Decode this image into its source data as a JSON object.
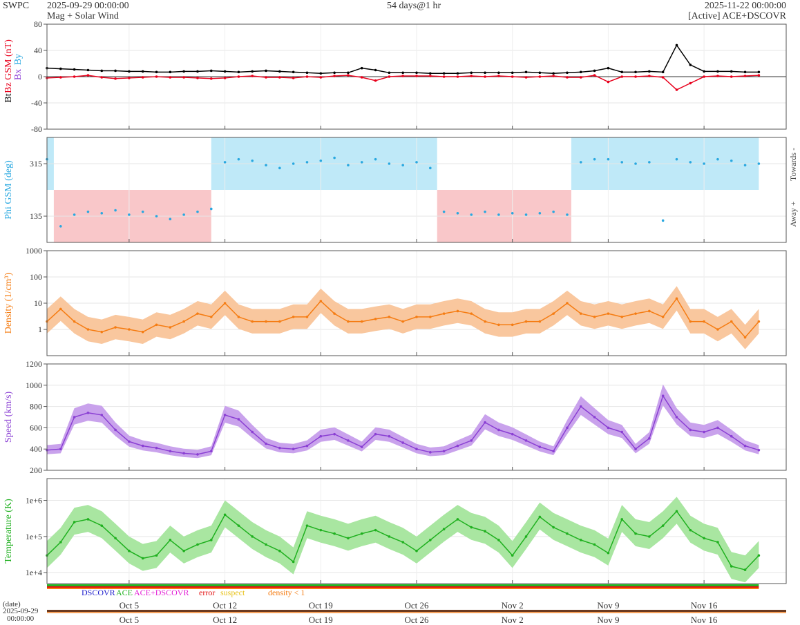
{
  "header": {
    "org": "SWPC",
    "start_time": "2025-09-29 00:00:00",
    "product": "Mag + Solar Wind",
    "span": "54 days@1 hr",
    "end_time": "2025-11-22 00:00:00",
    "source": "[Active] ACE+DSCOVR"
  },
  "colors": {
    "bt": "#000000",
    "bz": "#e8001c",
    "bx": "#8d3fd6",
    "by": "#29a8e0",
    "phi": "#29a8e0",
    "towards_fill": "#bfe9f8",
    "away_fill": "#f9c7c9",
    "density": "#f57c12",
    "density_fill": "#f9c79e",
    "speed": "#8a3fd3",
    "speed_fill": "#c9a2ec",
    "temperature": "#1fb01f",
    "temperature_fill": "#a9e6a1",
    "dscovr": "#1a1acc",
    "ace": "#24b324",
    "ace_dscovr": "#e31fd6",
    "error": "#e31010",
    "suspect": "#e8c21a",
    "density_lt1": "#f57c12"
  },
  "legend": {
    "dscovr": "DSCOVR",
    "ace": "ACE",
    "ace_dscovr": "ACE+DSCOVR",
    "error": "error",
    "suspect": "suspect",
    "density_lt1": "density < 1"
  },
  "timeline": {
    "date_label": "(date)",
    "start_date": "2025-09-29",
    "start_clock": "00:00:00"
  },
  "chart_data": [
    {
      "type": "line",
      "panel": "mag",
      "ylabel_parts": [
        "Bt",
        "Bz GSM (nT)",
        "Bx",
        "By"
      ],
      "ylim": [
        -80,
        80
      ],
      "yticks": [
        80,
        40,
        0,
        -40,
        -80
      ],
      "x_days": [
        0,
        1,
        2,
        3,
        4,
        5,
        6,
        7,
        8,
        9,
        10,
        11,
        12,
        13,
        14,
        15,
        16,
        17,
        18,
        19,
        20,
        21,
        22,
        23,
        24,
        25,
        26,
        27,
        28,
        29,
        30,
        31,
        32,
        33,
        34,
        35,
        36,
        37,
        38,
        39,
        40,
        41,
        42,
        43,
        44,
        45,
        46,
        47,
        48,
        49,
        50,
        51,
        52
      ],
      "series": [
        {
          "name": "Bt",
          "values": [
            13,
            12,
            11,
            10,
            9,
            9,
            8,
            8,
            7,
            7,
            8,
            8,
            9,
            8,
            7,
            8,
            9,
            8,
            7,
            6,
            5,
            6,
            6,
            13,
            10,
            6,
            6,
            6,
            5,
            5,
            5,
            6,
            6,
            6,
            6,
            7,
            6,
            5,
            6,
            7,
            9,
            13,
            7,
            7,
            8,
            7,
            48,
            18,
            8,
            8,
            8,
            7,
            7
          ]
        },
        {
          "name": "Bz",
          "values": [
            -2,
            -1,
            0,
            2,
            -1,
            -3,
            -2,
            -1,
            0,
            -1,
            -1,
            -2,
            -3,
            -2,
            0,
            1,
            -1,
            -1,
            -2,
            0,
            -1,
            1,
            2,
            -1,
            -6,
            0,
            1,
            1,
            1,
            0,
            0,
            1,
            0,
            1,
            0,
            -1,
            0,
            1,
            -1,
            -1,
            2,
            -8,
            0,
            0,
            1,
            -1,
            -20,
            -10,
            0,
            1,
            0,
            1,
            2
          ]
        }
      ]
    },
    {
      "type": "scatter",
      "panel": "phi",
      "ylabel": "Phi GSM (deg)",
      "ylim": [
        45,
        405
      ],
      "yticks": [
        315,
        135
      ],
      "right_labels": [
        "Towards -",
        "Away +"
      ],
      "sectors": [
        {
          "start": 0,
          "end": 0.5,
          "sign": "towards"
        },
        {
          "start": 0.5,
          "end": 12,
          "sign": "away"
        },
        {
          "start": 12,
          "end": 28.5,
          "sign": "towards"
        },
        {
          "start": 28.5,
          "end": 38.3,
          "sign": "away"
        },
        {
          "start": 38.3,
          "end": 52,
          "sign": "towards"
        }
      ],
      "x_days": [
        0,
        1,
        2,
        3,
        4,
        5,
        6,
        7,
        8,
        9,
        10,
        11,
        12,
        13,
        14,
        15,
        16,
        17,
        18,
        19,
        20,
        21,
        22,
        23,
        24,
        25,
        26,
        27,
        28,
        29,
        30,
        31,
        32,
        33,
        34,
        35,
        36,
        37,
        38,
        39,
        40,
        41,
        42,
        43,
        44,
        45,
        46,
        47,
        48,
        49,
        50,
        51,
        52
      ],
      "values": [
        330,
        100,
        140,
        150,
        145,
        155,
        140,
        150,
        135,
        125,
        140,
        150,
        160,
        320,
        330,
        325,
        310,
        300,
        315,
        320,
        325,
        335,
        310,
        320,
        330,
        315,
        310,
        320,
        300,
        150,
        145,
        140,
        150,
        140,
        145,
        140,
        145,
        150,
        140,
        320,
        330,
        330,
        320,
        315,
        320,
        120,
        330,
        320,
        315,
        330,
        325,
        310,
        315
      ]
    },
    {
      "type": "area",
      "panel": "density",
      "ylabel": "Density (1/cm³)",
      "yscale": "log",
      "ylim": [
        0.1,
        1000
      ],
      "yticks": [
        1000,
        100,
        10,
        1
      ],
      "x_days": [
        0,
        1,
        2,
        3,
        4,
        5,
        6,
        7,
        8,
        9,
        10,
        11,
        12,
        13,
        14,
        15,
        16,
        17,
        18,
        19,
        20,
        21,
        22,
        23,
        24,
        25,
        26,
        27,
        28,
        29,
        30,
        31,
        32,
        33,
        34,
        35,
        36,
        37,
        38,
        39,
        40,
        41,
        42,
        43,
        44,
        45,
        46,
        47,
        48,
        49,
        50,
        51,
        52
      ],
      "values": [
        2,
        6,
        2,
        1,
        0.8,
        1.2,
        1,
        0.8,
        1.5,
        1.2,
        2,
        4,
        3,
        10,
        3,
        2,
        2,
        2,
        3,
        3,
        12,
        4,
        2,
        2,
        2.5,
        3,
        2,
        3,
        3,
        4,
        5,
        4,
        2,
        1.5,
        1.5,
        2,
        2,
        4,
        10,
        4,
        3,
        4,
        3,
        4,
        5,
        3,
        15,
        2,
        2,
        1,
        2,
        0.5,
        2
      ]
    },
    {
      "type": "line",
      "panel": "speed",
      "ylabel": "Speed (km/s)",
      "ylim": [
        200,
        1200
      ],
      "yticks": [
        1200,
        1000,
        800,
        600,
        400,
        200
      ],
      "x_days": [
        0,
        1,
        2,
        3,
        4,
        5,
        6,
        7,
        8,
        9,
        10,
        11,
        12,
        13,
        14,
        15,
        16,
        17,
        18,
        19,
        20,
        21,
        22,
        23,
        24,
        25,
        26,
        27,
        28,
        29,
        30,
        31,
        32,
        33,
        34,
        35,
        36,
        37,
        38,
        39,
        40,
        41,
        42,
        43,
        44,
        45,
        46,
        47,
        48,
        49,
        50,
        51,
        52
      ],
      "values": [
        390,
        400,
        700,
        740,
        720,
        580,
        470,
        430,
        410,
        380,
        360,
        350,
        380,
        720,
        680,
        560,
        450,
        410,
        400,
        430,
        520,
        540,
        480,
        420,
        540,
        520,
        460,
        400,
        370,
        380,
        430,
        480,
        650,
        580,
        540,
        480,
        420,
        380,
        600,
        800,
        700,
        600,
        560,
        400,
        500,
        900,
        700,
        580,
        560,
        600,
        520,
        430,
        390
      ]
    },
    {
      "type": "area",
      "panel": "temperature",
      "ylabel": "Temperature (K)",
      "yscale": "log",
      "ylim": [
        5000,
        4000000
      ],
      "yticks": [
        1000000,
        100000,
        10000
      ],
      "ytick_labels": [
        "1e+6",
        "1e+5",
        "1e+4"
      ],
      "x_days": [
        0,
        1,
        2,
        3,
        4,
        5,
        6,
        7,
        8,
        9,
        10,
        11,
        12,
        13,
        14,
        15,
        16,
        17,
        18,
        19,
        20,
        21,
        22,
        23,
        24,
        25,
        26,
        27,
        28,
        29,
        30,
        31,
        32,
        33,
        34,
        35,
        36,
        37,
        38,
        39,
        40,
        41,
        42,
        43,
        44,
        45,
        46,
        47,
        48,
        49,
        50,
        51,
        52
      ],
      "values": [
        30000,
        70000,
        250000,
        300000,
        200000,
        90000,
        40000,
        25000,
        30000,
        80000,
        40000,
        60000,
        80000,
        400000,
        200000,
        100000,
        60000,
        40000,
        20000,
        200000,
        150000,
        120000,
        90000,
        120000,
        150000,
        100000,
        70000,
        40000,
        80000,
        160000,
        300000,
        180000,
        140000,
        80000,
        30000,
        100000,
        350000,
        180000,
        120000,
        80000,
        60000,
        35000,
        300000,
        120000,
        100000,
        200000,
        500000,
        150000,
        90000,
        70000,
        15000,
        12000,
        30000
      ]
    }
  ],
  "xaxis": {
    "tick_labels": [
      "Oct 5",
      "Oct 12",
      "Oct 19",
      "Oct 26",
      "Nov 2",
      "Nov 9",
      "Nov 16"
    ],
    "tick_days": [
      6,
      13,
      20,
      27,
      34,
      41,
      48
    ]
  }
}
